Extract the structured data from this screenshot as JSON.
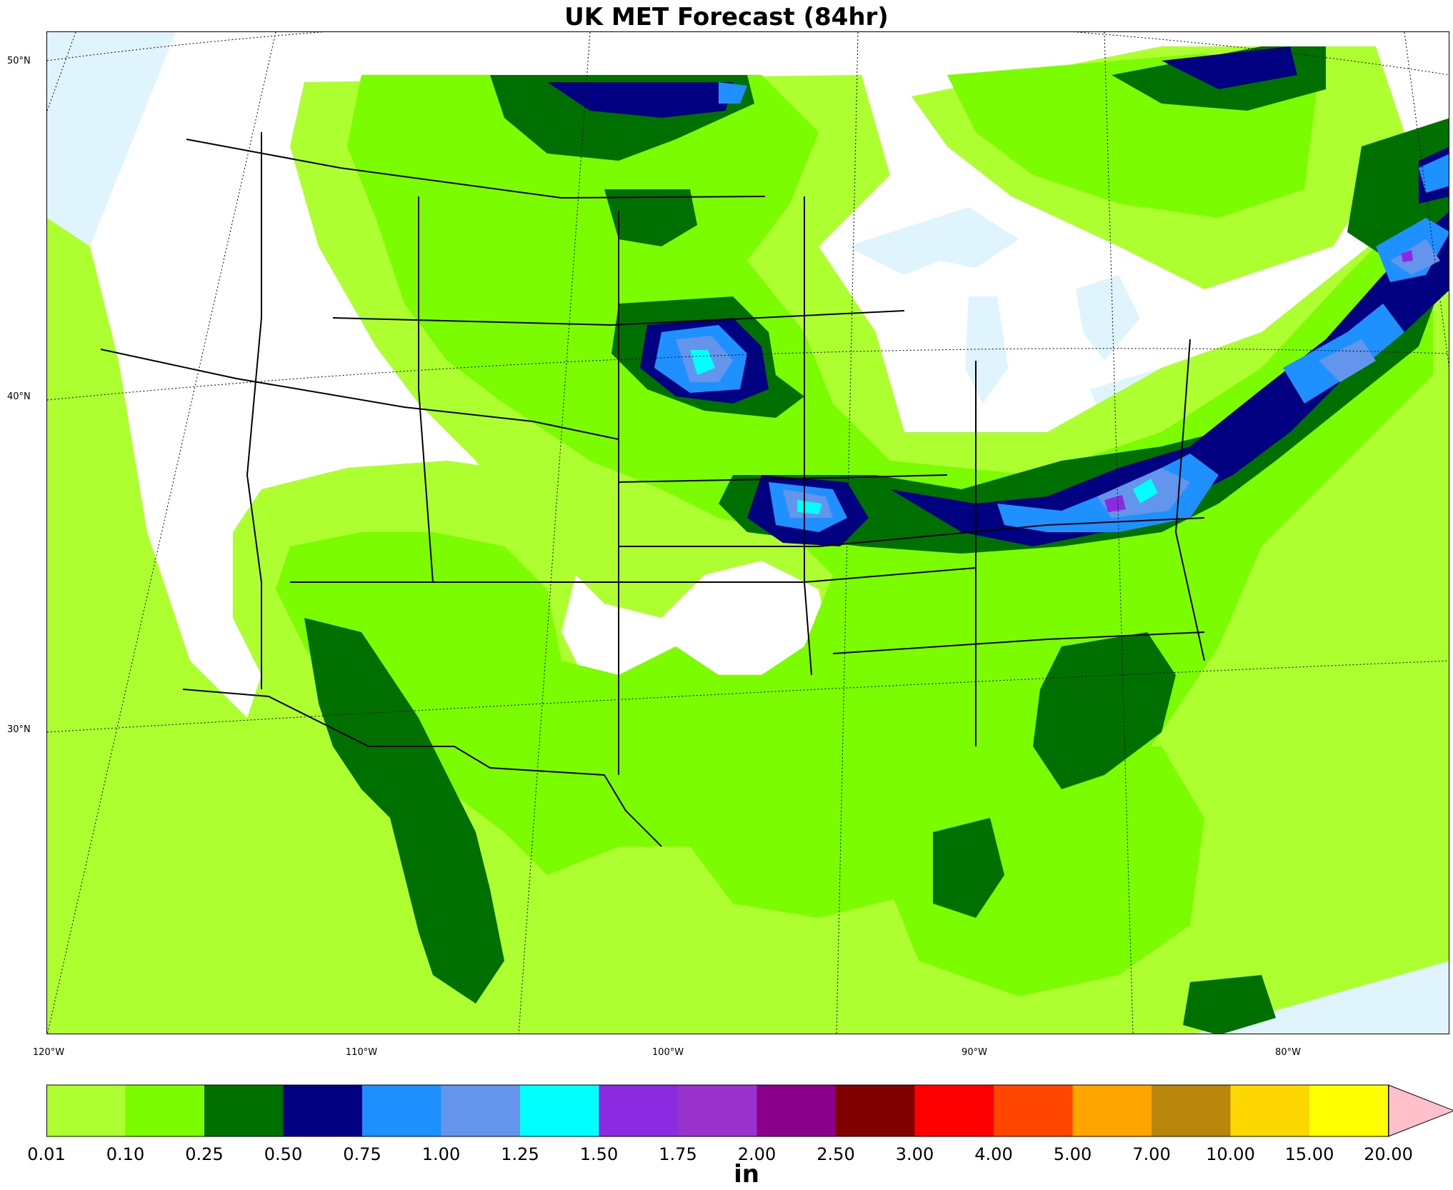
{
  "title": "UK MET Forecast (84hr)",
  "lat_labels": [
    "50°N",
    "40°N",
    "30°N"
  ],
  "lon_labels": [
    "120°W",
    "110°W",
    "100°W",
    "90°W",
    "80°W"
  ],
  "legend": {
    "unit": "in",
    "ticks": [
      "0.01",
      "0.10",
      "0.25",
      "0.50",
      "0.75",
      "1.00",
      "1.25",
      "1.50",
      "1.75",
      "2.00",
      "2.50",
      "3.00",
      "4.00",
      "5.00",
      "7.00",
      "10.00",
      "15.00",
      "20.00"
    ],
    "colors": [
      "#adff2f",
      "#7cfc00",
      "#007000",
      "#000080",
      "#1e90ff",
      "#6495ed",
      "#00ffff",
      "#8a2be2",
      "#9932cc",
      "#8b008b",
      "#800000",
      "#ff0000",
      "#ff4500",
      "#ffa500",
      "#b8860b",
      "#ffd700",
      "#ffff00"
    ],
    "extend_color": "#ffc0cb"
  },
  "colors": {
    "ocean": "#dff4fc",
    "land_no_precip": "#ffffff",
    "boundary": "#000000"
  }
}
